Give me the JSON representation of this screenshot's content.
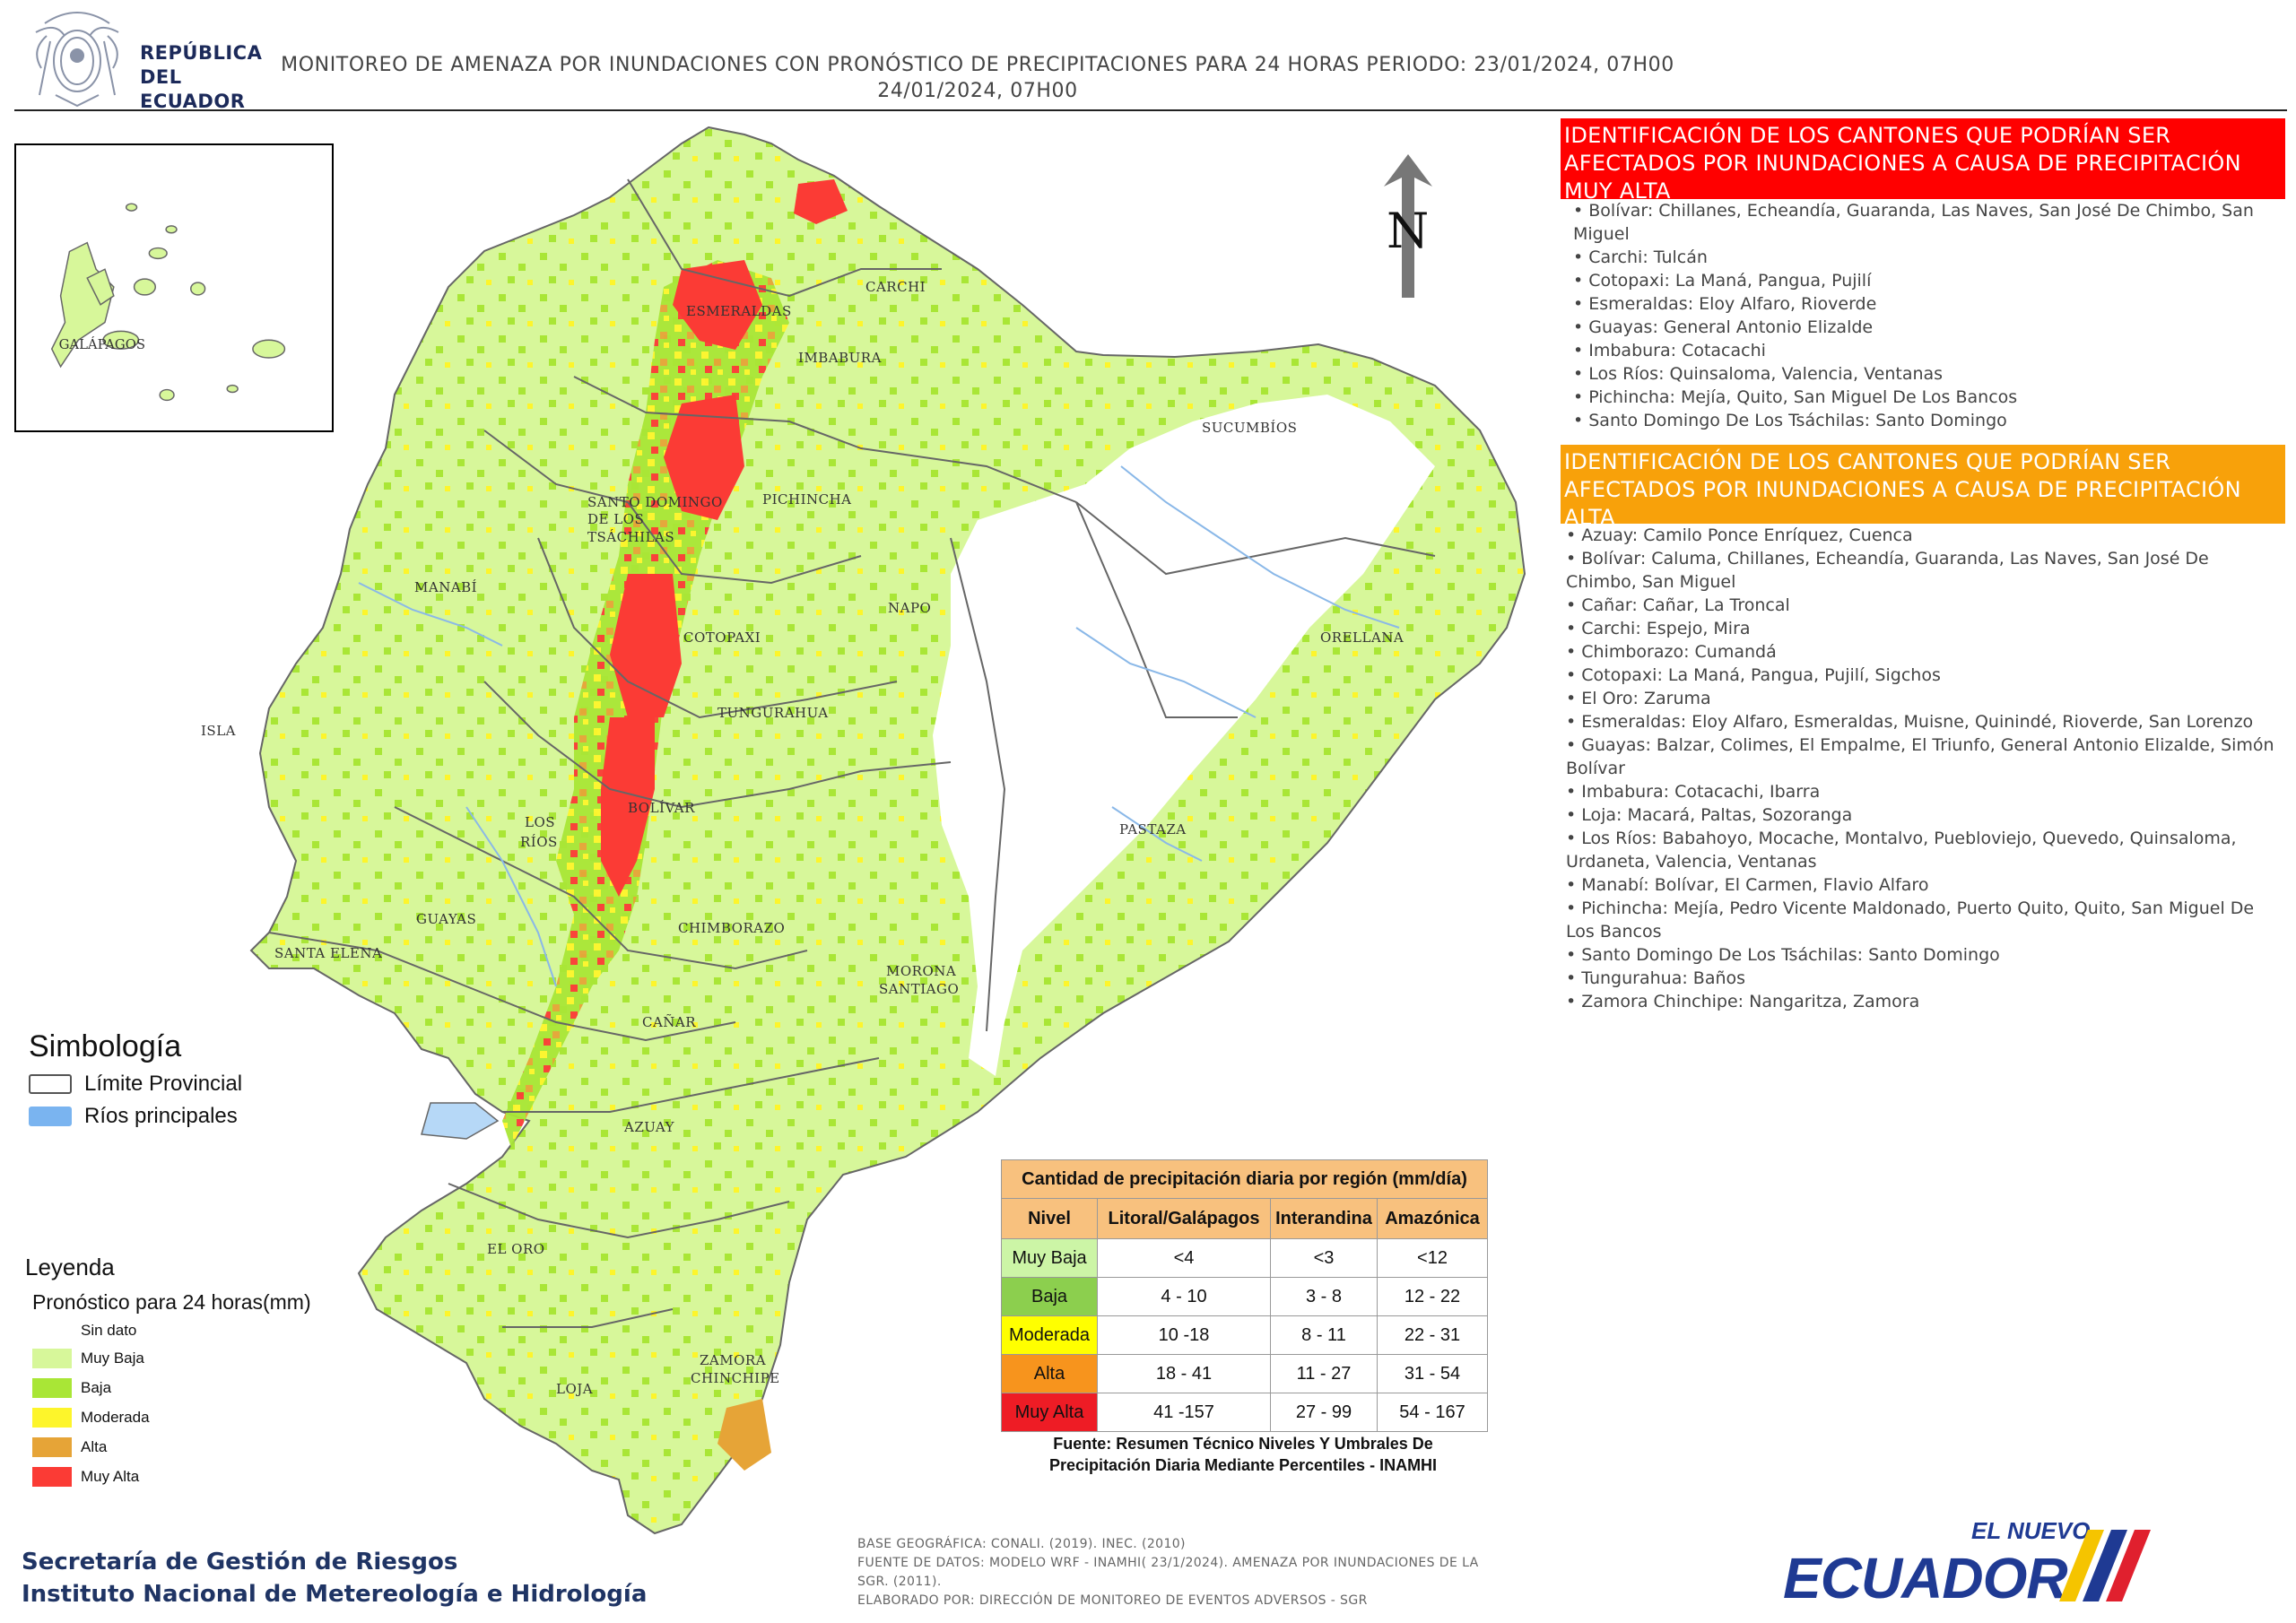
{
  "header": {
    "agency_line1": "REPÚBLICA",
    "agency_line2": "DEL ECUADOR",
    "title_line1": "MONITOREO DE AMENAZA POR INUNDACIONES  CON PRONÓSTICO DE  PRECIPITACIONES PARA 24 HORAS  PERIODO: 23/01/2024, 07H00",
    "title_line2": "24/01/2024, 07H00"
  },
  "north_arrow": {
    "label": "N",
    "icon": "north-arrow-icon"
  },
  "inset": {
    "label": "GALÁPAGOS"
  },
  "map_labels": {
    "esmeraldas": "ESMERALDAS",
    "carchi": "CARCHI",
    "imbabura": "IMBABURA",
    "sucumbios": "SUCUMBÍOS",
    "pichincha": "PICHINCHA",
    "santo_domingo_1": "SANTO DOMINGO",
    "santo_domingo_2": "DE LOS",
    "santo_domingo_3": "TSÁCHILAS",
    "manabi": "MANABÍ",
    "napo": "NAPO",
    "orellana": "ORELLANA",
    "cotopaxi": "COTOPAXI",
    "isla": "ISLA",
    "tungurahua": "TUNGURAHUA",
    "bolivar": "BOLÍVAR",
    "los_rios_1": "LOS",
    "los_rios_2": "RÍOS",
    "pastaza": "PASTAZA",
    "guayas": "GUAYAS",
    "santa_elena": "SANTA ELENA",
    "chimborazo": "CHIMBORAZO",
    "morona_1": "MORONA",
    "morona_2": "SANTIAGO",
    "canar": "CAÑAR",
    "azuay": "AZUAY",
    "el_oro": "EL ORO",
    "zamora_1": "ZAMORA",
    "zamora_2": "CHINCHIPE",
    "loja": "LOJA"
  },
  "panel_muy_alta": {
    "heading": "IDENTIFICACIÓN DE LOS CANTONES QUE PODRÍAN SER AFECTADOS POR INUNDACIONES  A CAUSA DE PRECIPITACIÓN MUY ALTA",
    "color": "#ff0000",
    "items": [
      "Bolívar: Chillanes, Echeandía, Guaranda, Las Naves, San José De Chimbo, San Miguel",
      "Carchi: Tulcán",
      "Cotopaxi: La Maná, Pangua, Pujilí",
      "Esmeraldas: Eloy Alfaro, Rioverde",
      "Guayas: General Antonio Elizalde",
      "Imbabura: Cotacachi",
      "Los Ríos: Quinsaloma, Valencia, Ventanas",
      "Pichincha: Mejía, Quito, San Miguel De Los Bancos",
      "Santo Domingo De Los Tsáchilas: Santo Domingo"
    ]
  },
  "panel_alta": {
    "heading": "IDENTIFICACIÓN DE LOS CANTONES QUE  PODRÍAN SER AFECTADOS POR INUNDACIONES  A CAUSA DE PRECIPITACIÓN  ALTA",
    "color": "#f8a10a",
    "items": [
      "Azuay: Camilo Ponce Enríquez, Cuenca",
      "Bolívar: Caluma, Chillanes, Echeandía, Guaranda, Las Naves, San José De Chimbo, San Miguel",
      "Cañar: Cañar, La Troncal",
      "Carchi: Espejo, Mira",
      "Chimborazo: Cumandá",
      "Cotopaxi: La Maná, Pangua, Pujilí, Sigchos",
      "El Oro: Zaruma",
      "Esmeraldas: Eloy Alfaro, Esmeraldas, Muisne, Quinindé, Rioverde, San Lorenzo",
      "Guayas: Balzar, Colimes, El Empalme, El Triunfo, General Antonio Elizalde, Simón Bolívar",
      "Imbabura: Cotacachi, Ibarra",
      "Loja: Macará, Paltas, Sozoranga",
      "Los Ríos: Babahoyo, Mocache, Montalvo, Puebloviejo, Quevedo, Quinsaloma, Urdaneta, Valencia, Ventanas",
      "Manabí: Bolívar, El Carmen, Flavio Alfaro",
      "Pichincha: Mejía, Pedro Vicente Maldonado, Puerto Quito, Quito, San Miguel De Los Bancos",
      "Santo Domingo De Los Tsáchilas: Santo Domingo",
      "Tungurahua: Baños",
      "Zamora Chinchipe: Nangaritza, Zamora"
    ]
  },
  "simbologia": {
    "title": "Simbología",
    "items": [
      {
        "label": "Límite Provincial",
        "color": "#ffffff",
        "border": "#555555"
      },
      {
        "label": "Ríos principales",
        "color": "#7ab4f0",
        "border": "#7ab4f0"
      }
    ]
  },
  "leyenda": {
    "title": "Leyenda",
    "subtitle": "Pronóstico para 24 horas(mm)",
    "items": [
      {
        "label": "Sin dato",
        "color": "#ffffff"
      },
      {
        "label": "Muy Baja",
        "color": "#d7f79a"
      },
      {
        "label": "Baja",
        "color": "#a9e636"
      },
      {
        "label": "Moderada",
        "color": "#fdf52b"
      },
      {
        "label": "Alta",
        "color": "#e6a437"
      },
      {
        "label": "Muy Alta",
        "color": "#fb3b35"
      }
    ]
  },
  "precip_table": {
    "caption": "Cantidad de precipitación diaria por región (mm/día)",
    "headers": [
      "Nivel",
      "Litoral/Galápagos",
      "Interandina",
      "Amazónica"
    ],
    "rows": [
      {
        "nivel": "Muy Baja",
        "color": "#ccf5a6",
        "values": [
          "<4",
          "<3",
          "<12"
        ]
      },
      {
        "nivel": "Baja",
        "color": "#8ccf4e",
        "values": [
          "4 - 10",
          "3 - 8",
          "12 - 22"
        ]
      },
      {
        "nivel": "Moderada",
        "color": "#ffff00",
        "values": [
          "10 -18",
          "8 - 11",
          "22 - 31"
        ]
      },
      {
        "nivel": "Alta",
        "color": "#f7941d",
        "values": [
          "18 - 41",
          "11 - 27",
          "31 - 54"
        ]
      },
      {
        "nivel": "Muy Alta",
        "color": "#ee1c25",
        "values": [
          "41 -157",
          "27 - 99",
          "54 - 167"
        ]
      }
    ],
    "note_line1": "Fuente: Resumen Técnico Niveles Y Umbrales De",
    "note_line2": "Precipitación Diaria Mediante Percentiles - INAMHI"
  },
  "footer": {
    "org1": "Secretaría de Gestión de Riesgos",
    "org2": "Instituto Nacional de Metereología e Hidrología",
    "credit1": "BASE GEOGRÁFICA: CONALI. (2019). INEC. (2010)",
    "credit2": "FUENTE DE DATOS: MODELO WRF - INAMHI( 23/1/2024).  AMENAZA POR INUNDACIONES DE LA SGR. (2011).",
    "credit3": "ELABORADO POR: DIRECCIÓN DE MONITOREO DE EVENTOS ADVERSOS - SGR",
    "brand_top": "EL NUEVO",
    "brand_main": "ECUADOR"
  }
}
